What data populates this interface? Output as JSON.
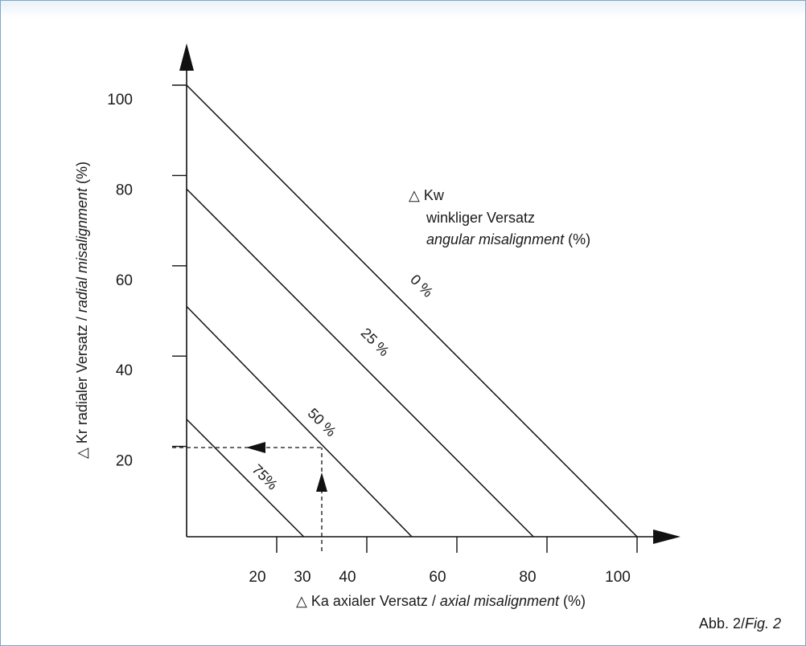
{
  "chart_data": {
    "type": "line",
    "x_axis": {
      "label_prefix": "△ Ka axialer Versatz / ",
      "label_italic": "axial misalignment",
      "label_suffix": " (%)",
      "ticks": [
        20,
        30,
        40,
        60,
        80,
        100
      ],
      "range": [
        0,
        100
      ]
    },
    "y_axis": {
      "label_prefix": "△ Kr radialer  Versatz / ",
      "label_italic": "radial misalignment",
      "label_suffix": " (%)",
      "ticks": [
        20,
        40,
        60,
        80,
        100
      ],
      "range": [
        0,
        100
      ]
    },
    "series": [
      {
        "name": "0 %",
        "x": [
          0,
          100
        ],
        "y": [
          100,
          0
        ]
      },
      {
        "name": "25 %",
        "x": [
          0,
          77
        ],
        "y": [
          77,
          0
        ]
      },
      {
        "name": "50 %",
        "x": [
          0,
          50
        ],
        "y": [
          51,
          0
        ]
      },
      {
        "name": "75%",
        "x": [
          0,
          26
        ],
        "y": [
          26,
          0
        ]
      }
    ],
    "legend": {
      "symbol": "△ Kw",
      "line1": "winkliger Versatz",
      "line2_italic": "angular misalignment",
      "line2_suffix": " (%)"
    },
    "example": {
      "x": 30,
      "y": 20
    },
    "caption_normal": "Abb. 2/",
    "caption_italic": "Fig. 2"
  }
}
